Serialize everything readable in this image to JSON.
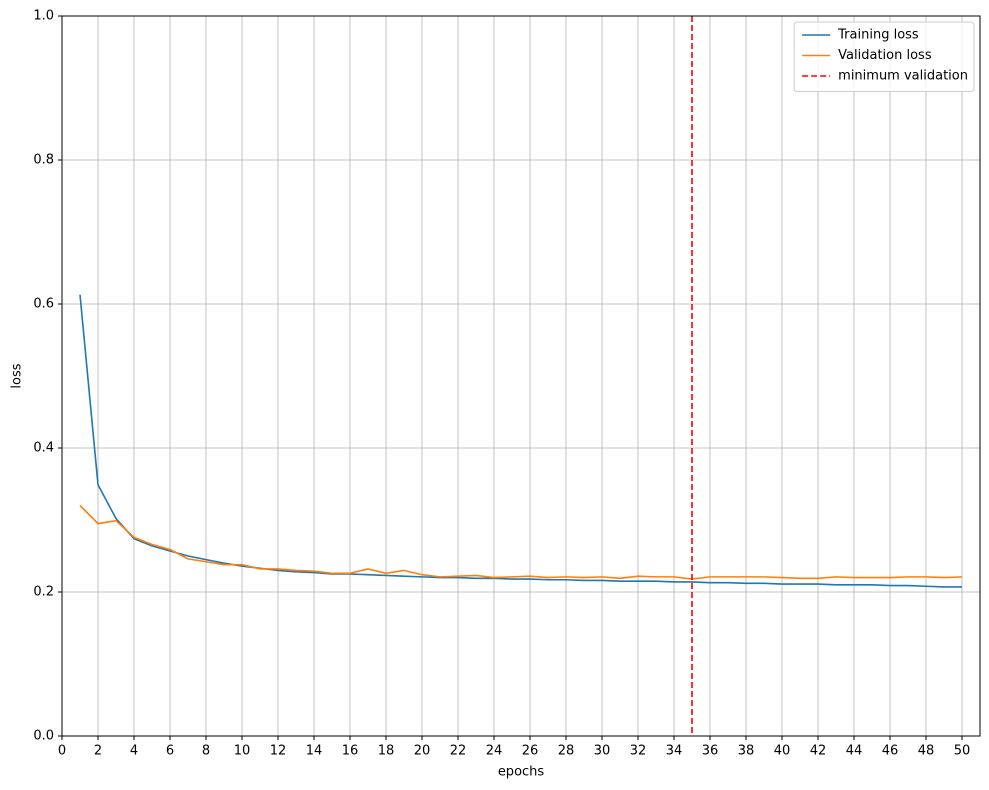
{
  "chart_data": {
    "type": "line",
    "xlabel": "epochs",
    "ylabel": "loss",
    "x": [
      1,
      2,
      3,
      4,
      5,
      6,
      7,
      8,
      9,
      10,
      11,
      12,
      13,
      14,
      15,
      16,
      17,
      18,
      19,
      20,
      21,
      22,
      23,
      24,
      25,
      26,
      27,
      28,
      29,
      30,
      31,
      32,
      33,
      34,
      35,
      36,
      37,
      38,
      39,
      40,
      41,
      42,
      43,
      44,
      45,
      46,
      47,
      48,
      49,
      50
    ],
    "series": [
      {
        "name": "Training loss",
        "color": "#1f77b4",
        "values": [
          0.613,
          0.349,
          0.302,
          0.274,
          0.264,
          0.257,
          0.25,
          0.245,
          0.24,
          0.236,
          0.233,
          0.23,
          0.228,
          0.227,
          0.225,
          0.225,
          0.224,
          0.223,
          0.222,
          0.221,
          0.22,
          0.22,
          0.219,
          0.219,
          0.218,
          0.218,
          0.217,
          0.217,
          0.216,
          0.216,
          0.215,
          0.215,
          0.215,
          0.214,
          0.214,
          0.213,
          0.213,
          0.212,
          0.212,
          0.211,
          0.211,
          0.211,
          0.21,
          0.21,
          0.21,
          0.209,
          0.209,
          0.208,
          0.207,
          0.207
        ]
      },
      {
        "name": "Validation loss",
        "color": "#ff7f0e",
        "values": [
          0.32,
          0.295,
          0.299,
          0.276,
          0.266,
          0.259,
          0.246,
          0.242,
          0.238,
          0.238,
          0.232,
          0.232,
          0.23,
          0.229,
          0.226,
          0.226,
          0.232,
          0.226,
          0.23,
          0.224,
          0.221,
          0.222,
          0.223,
          0.22,
          0.221,
          0.222,
          0.22,
          0.221,
          0.22,
          0.221,
          0.219,
          0.222,
          0.221,
          0.221,
          0.218,
          0.221,
          0.221,
          0.221,
          0.221,
          0.22,
          0.219,
          0.219,
          0.221,
          0.22,
          0.22,
          0.22,
          0.221,
          0.221,
          0.22,
          0.221
        ]
      }
    ],
    "vlines": [
      {
        "name": "minimum validation",
        "x": 35,
        "color": "#ff0000",
        "dashed": true
      }
    ],
    "xlim": [
      0,
      51
    ],
    "xticks": [
      0,
      2,
      4,
      6,
      8,
      10,
      12,
      14,
      16,
      18,
      20,
      22,
      24,
      26,
      28,
      30,
      32,
      34,
      36,
      38,
      40,
      42,
      44,
      46,
      48,
      50
    ],
    "ylim": [
      0,
      1
    ],
    "yticks": [
      {
        "value": 0,
        "label": "0.0"
      },
      0.2,
      0.4,
      0.6,
      0.8,
      {
        "value": 1,
        "label": "1.0"
      }
    ],
    "grid": true,
    "legend": "upper right"
  }
}
